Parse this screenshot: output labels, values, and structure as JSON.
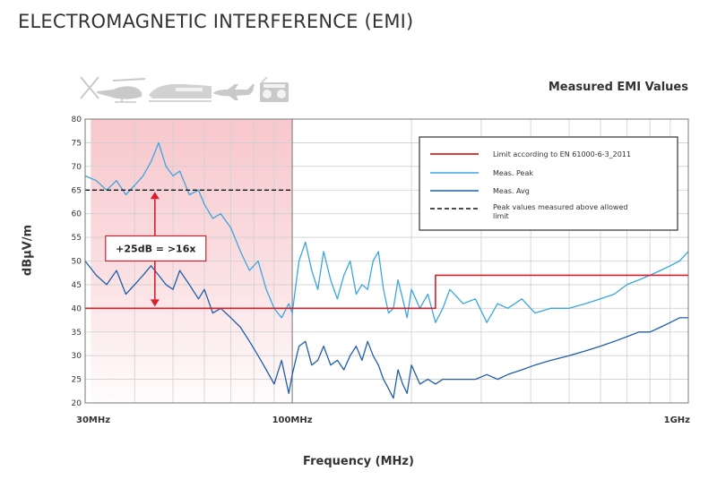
{
  "chart_data": {
    "type": "line",
    "title": "ELECTROMAGNETIC INTERFERENCE (EMI)",
    "subtitle": "Measured EMI Values",
    "xlabel": "Frequency (MHz)",
    "ylabel": "dBμV/m",
    "xscale": "log",
    "xlim": [
      30,
      1000
    ],
    "ylim": [
      20,
      80
    ],
    "yticks": [
      20,
      25,
      30,
      35,
      40,
      45,
      50,
      55,
      60,
      65,
      70,
      75,
      80
    ],
    "xtick_labels": [
      {
        "value": 30,
        "label": "30MHz"
      },
      {
        "value": 100,
        "label": "100MHz"
      },
      {
        "value": 1000,
        "label": "1GHz"
      }
    ],
    "grid": true,
    "legend_position": "top-right",
    "colors": {
      "limit": "#d81f2a",
      "peak": "#3aa6dd",
      "avg": "#1f5ea8",
      "highlight": "#f7c7cc"
    },
    "highlight_region": {
      "x": [
        31,
        100
      ],
      "y": [
        20,
        80
      ]
    },
    "series": [
      {
        "name": "Limit according to EN 61000-6-3_2011",
        "key": "limit",
        "style": "solid",
        "x": [
          30,
          230,
          230,
          1000
        ],
        "y": [
          40,
          40,
          47,
          47
        ]
      },
      {
        "name": "Meas. Peak",
        "key": "peak",
        "style": "solid",
        "x": [
          30,
          32,
          34,
          36,
          38,
          40,
          42,
          44,
          46,
          48,
          50,
          52,
          55,
          58,
          60,
          63,
          66,
          70,
          74,
          78,
          82,
          86,
          90,
          94,
          98,
          100,
          104,
          108,
          112,
          116,
          120,
          125,
          130,
          135,
          140,
          145,
          150,
          155,
          160,
          165,
          170,
          175,
          180,
          185,
          190,
          195,
          200,
          210,
          220,
          230,
          240,
          250,
          270,
          290,
          310,
          330,
          350,
          380,
          410,
          450,
          500,
          550,
          600,
          650,
          700,
          750,
          800,
          850,
          900,
          950,
          1000
        ],
        "y": [
          68,
          67,
          65,
          67,
          64,
          66,
          68,
          71,
          75,
          70,
          68,
          69,
          64,
          65,
          62,
          59,
          60,
          57,
          52,
          48,
          50,
          44,
          40,
          38,
          41,
          39,
          50,
          54,
          48,
          44,
          52,
          46,
          42,
          47,
          50,
          43,
          45,
          44,
          50,
          52,
          44,
          39,
          40,
          46,
          42,
          38,
          44,
          40,
          43,
          37,
          40,
          44,
          41,
          42,
          37,
          41,
          40,
          42,
          39,
          40,
          40,
          41,
          42,
          43,
          45,
          46,
          47,
          48,
          49,
          50,
          52
        ]
      },
      {
        "name": "Meas. Avg",
        "key": "avg",
        "style": "solid",
        "x": [
          30,
          32,
          34,
          36,
          38,
          40,
          42,
          44,
          46,
          48,
          50,
          52,
          55,
          58,
          60,
          63,
          66,
          70,
          74,
          78,
          82,
          86,
          90,
          94,
          98,
          100,
          104,
          108,
          112,
          116,
          120,
          125,
          130,
          135,
          140,
          145,
          150,
          155,
          160,
          165,
          170,
          175,
          180,
          185,
          190,
          195,
          200,
          210,
          220,
          230,
          240,
          250,
          270,
          290,
          310,
          330,
          350,
          380,
          410,
          450,
          500,
          550,
          600,
          650,
          700,
          750,
          800,
          850,
          900,
          950,
          1000
        ],
        "y": [
          50,
          47,
          45,
          48,
          43,
          45,
          47,
          49,
          47,
          45,
          44,
          48,
          45,
          42,
          44,
          39,
          40,
          38,
          36,
          33,
          30,
          27,
          24,
          29,
          22,
          26,
          32,
          33,
          28,
          29,
          32,
          28,
          29,
          27,
          30,
          32,
          29,
          33,
          30,
          28,
          25,
          23,
          21,
          27,
          24,
          22,
          28,
          24,
          25,
          24,
          25,
          25,
          25,
          25,
          26,
          25,
          26,
          27,
          28,
          29,
          30,
          31,
          32,
          33,
          34,
          35,
          35,
          36,
          37,
          38,
          38
        ]
      },
      {
        "name": "Peak values measured above allowed limit",
        "key": "threshold",
        "style": "dashed",
        "x": [
          30,
          100
        ],
        "y": [
          65,
          65
        ]
      }
    ],
    "annotations": [
      {
        "text": "+25dB = >16x",
        "x_from": 45,
        "y_from": 40,
        "y_to": 65
      }
    ]
  }
}
